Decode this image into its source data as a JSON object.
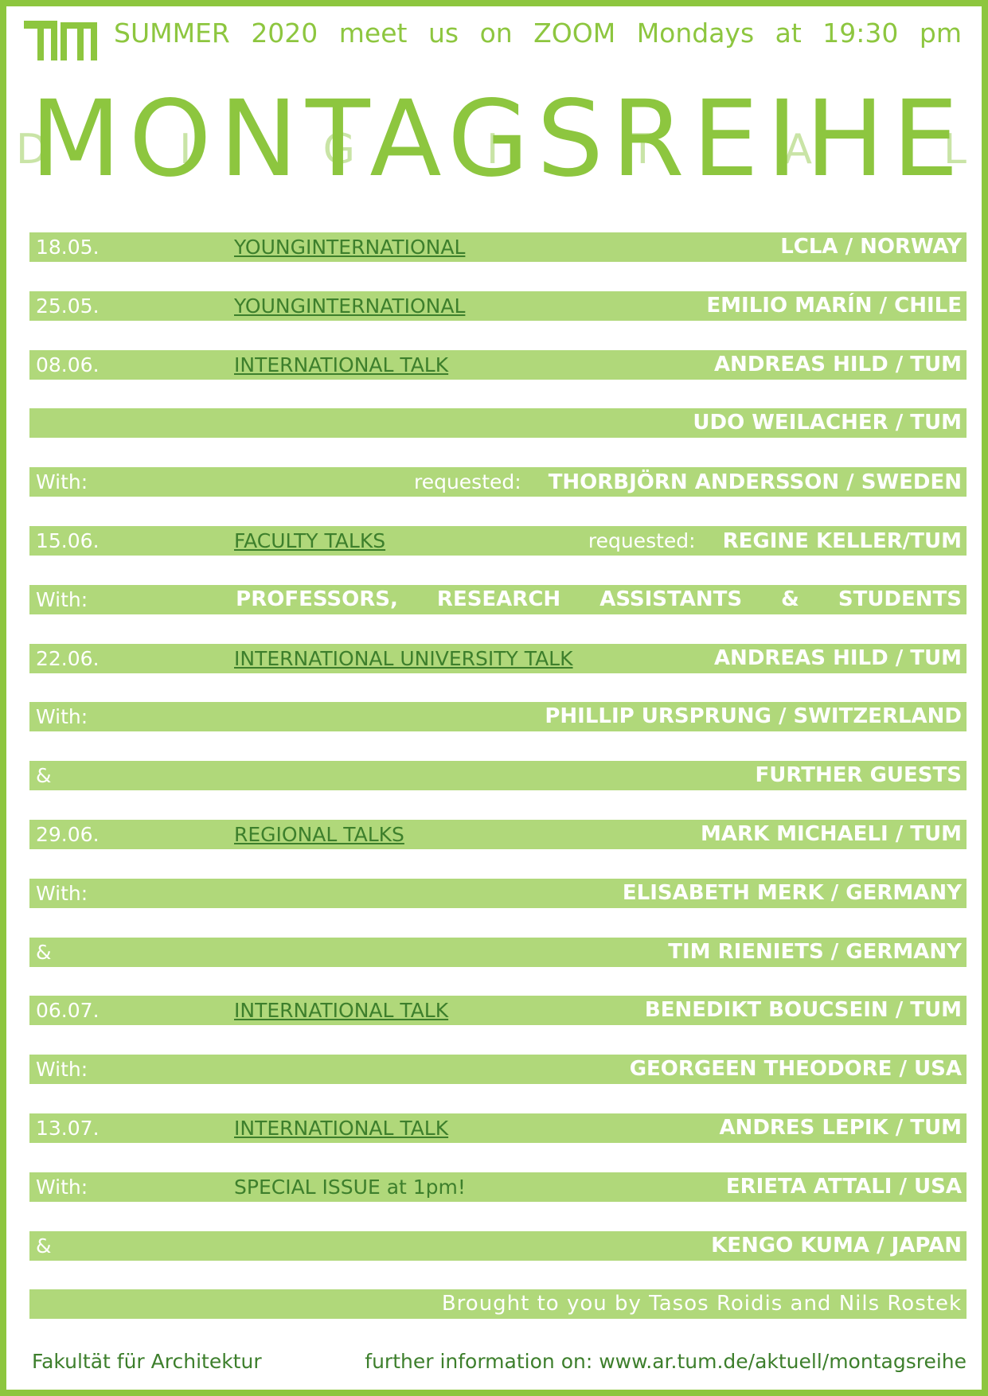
{
  "header": {
    "line": "SUMMER 2020 meet us on ZOOM Mondays at 19:30 pm"
  },
  "title": {
    "main": "MONTAGSREIHE",
    "overlay": "DIGITAL"
  },
  "program": [
    {
      "left": "18.05.",
      "topic": "YOUNGINTERNATIONAL",
      "name": "LCLA / NORWAY"
    },
    {
      "left": "25.05.",
      "topic": "YOUNGINTERNATIONAL",
      "name": "EMILIO MARÍN / CHILE"
    },
    {
      "left": "08.06.",
      "topic": "INTERNATIONAL TALK",
      "name": "ANDREAS HILD / TUM"
    },
    {
      "name": "UDO WEILACHER / TUM"
    },
    {
      "left": "With:",
      "requested": "requested:",
      "name": "THORBJÖRN ANDERSSON / SWEDEN"
    },
    {
      "left": "15.06.",
      "topic": "FACULTY TALKS",
      "requested": "requested:",
      "name": "REGINE KELLER/TUM"
    },
    {
      "left": "With:",
      "name": "PROFESSORS, RESEARCH ASSISTANTS & STUDENTS"
    },
    {
      "left": "22.06.",
      "topic": "INTERNATIONAL UNIVERSITY TALK",
      "name": "ANDREAS HILD / TUM"
    },
    {
      "left": "With:",
      "name": "PHILLIP URSPRUNG / SWITZERLAND"
    },
    {
      "left": "&",
      "name": "FURTHER GUESTS"
    },
    {
      "left": "29.06.",
      "topic": "REGIONAL TALKS",
      "name": "MARK MICHAELI / TUM"
    },
    {
      "left": "With:",
      "name": "ELISABETH MERK / GERMANY"
    },
    {
      "left": "&",
      "name": "TIM RIENIETS / GERMANY"
    },
    {
      "left": "06.07.",
      "topic": "INTERNATIONAL TALK",
      "name": "BENEDIKT BOUCSEIN / TUM"
    },
    {
      "left": "With:",
      "name": "GEORGEEN THEODORE / USA"
    },
    {
      "left": "13.07.",
      "topic": "INTERNATIONAL TALK",
      "name": "ANDRES LEPIK / TUM"
    },
    {
      "left": "With:",
      "note": "SPECIAL ISSUE at 1pm!",
      "name": "ERIETA ATTALI / USA"
    },
    {
      "left": "&",
      "name": "KENGO KUMA / JAPAN"
    }
  ],
  "credits": "Brought to you by Tasos Roidis and Nils Rostek",
  "footer": {
    "faculty": "Fakultät für Architektur",
    "info": "further information on: www.ar.tum.de/aktuell/montagsreihe"
  }
}
